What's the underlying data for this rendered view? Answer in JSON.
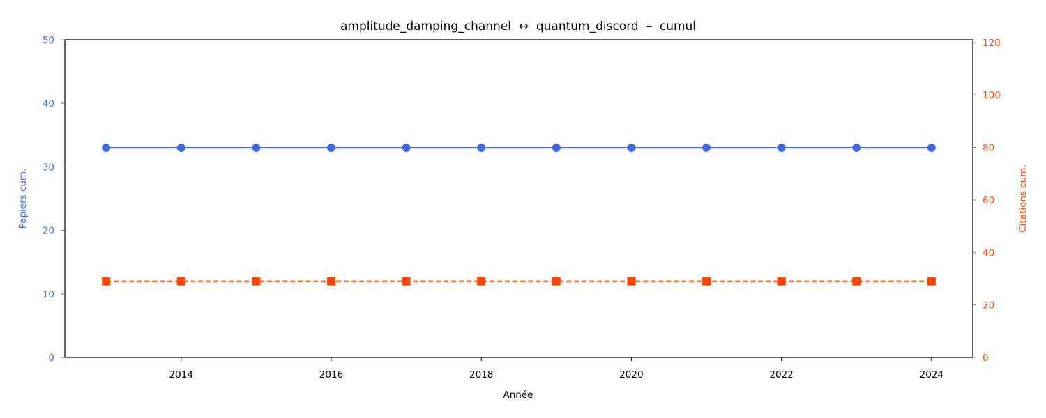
{
  "chart_data": {
    "type": "line",
    "title": "amplitude_damping_channel  ↔  quantum_discord  –  cumul",
    "xlabel": "Année",
    "ylabel_left": "Papiers cum.",
    "ylabel_right": "Citations cum.",
    "x": [
      2013,
      2014,
      2015,
      2016,
      2017,
      2018,
      2019,
      2020,
      2021,
      2022,
      2023,
      2024
    ],
    "xlim": [
      2012.45,
      2024.55
    ],
    "x_ticks": [
      "2014",
      "2016",
      "2018",
      "2020",
      "2022",
      "2024"
    ],
    "ylim_left": [
      0,
      50
    ],
    "y_ticks_left": [
      "0",
      "10",
      "20",
      "30",
      "40",
      "50"
    ],
    "ylim_right": [
      0,
      121
    ],
    "y_ticks_right": [
      "0",
      "20",
      "40",
      "60",
      "80",
      "100",
      "120"
    ],
    "grid": false,
    "series": [
      {
        "axis": "left",
        "color": "#4169e1",
        "marker": "circle",
        "linestyle": "solid",
        "values": [
          33,
          33,
          33,
          33,
          33,
          33,
          33,
          33,
          33,
          33,
          33,
          33
        ]
      },
      {
        "axis": "right",
        "color": "#ff4500",
        "marker": "square",
        "linestyle": "dashed",
        "values": [
          29,
          29,
          29,
          29,
          29,
          29,
          29,
          29,
          29,
          29,
          29,
          29
        ]
      }
    ],
    "colors": {
      "left_axis": "#4169e1",
      "right_axis": "#ff4500"
    }
  }
}
